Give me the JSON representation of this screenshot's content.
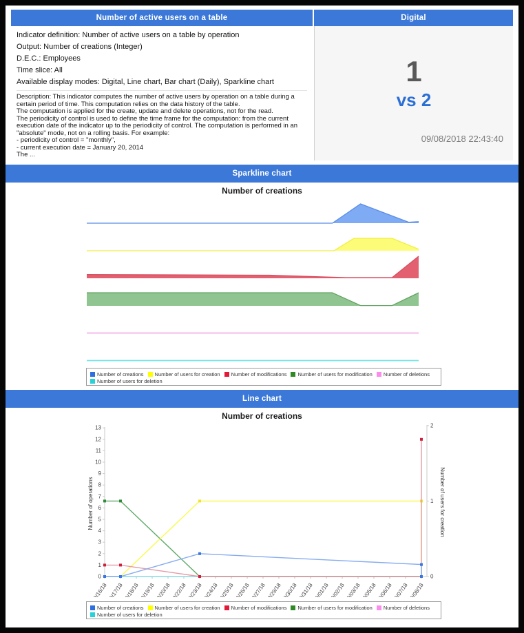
{
  "colors": {
    "header_bg": "#3B78D8",
    "header_text": "#ffffff",
    "digital_value": "#595959",
    "digital_vs": "#2B6FD4",
    "frame": "#060606",
    "digital_panel_bg": "#f6f6f6"
  },
  "top": {
    "left": {
      "title": "Number of active users on a table",
      "attributes": [
        "Indicator definition: Number of active users on a table by operation",
        "Output: Number of creations (Integer)",
        "D.E.C.: Employees",
        "Time slice: All",
        "Available display modes: Digital, Line chart, Bar chart (Daily), Sparkline chart"
      ],
      "description": "Description: This indicator computes the number of active users by operation on a table during a certain period of time. This computation relies on the data history of the table.\nThe computation is applied for the create, update and delete operations, not for the read.\nThe periodicity of control is used to define the time frame for the computation: from the current execution date of the indicator up to the periodicity of control. The computation is performed in an \"absolute\" mode, not on a rolling basis. For example:\n- periodicity of control = \"monthly\",\n- current execution date = January 20, 2014\nThe ..."
    },
    "right": {
      "title": "Digital",
      "value": "1",
      "comparison": "vs 2",
      "timestamp": "09/08/2018 22:43:40"
    }
  },
  "sparkline_section": {
    "title": "Sparkline chart",
    "chart_title": "Number of creations"
  },
  "line_section": {
    "title": "Line chart",
    "chart_title": "Number of creations"
  },
  "legend": {
    "items": [
      {
        "label": "Number of creations",
        "color": "#2E6FE0"
      },
      {
        "label": "Number of users for creation",
        "color": "#FFFF00"
      },
      {
        "label": "Number of modifications",
        "color": "#E31937"
      },
      {
        "label": "Number of users for modification",
        "color": "#2F8A25"
      },
      {
        "label": "Number of deletions",
        "color": "#FB8CEB"
      },
      {
        "label": "Number of users for deletion",
        "color": "#27D1D8"
      }
    ]
  },
  "chart_data": [
    {
      "type": "area",
      "variant": "sparklines",
      "title": "Number of creations",
      "series": [
        {
          "name": "Number of creations",
          "stroke": "#5A8CE8",
          "fill": "#7FABF4",
          "filled": true,
          "height": 28,
          "points": [
            [
              0,
              0
            ],
            [
              0.74,
              0
            ],
            [
              0.825,
              1
            ],
            [
              0.97,
              0.05
            ],
            [
              1,
              0.08
            ]
          ]
        },
        {
          "name": "Number of users for creation",
          "stroke": "#EFEF3E",
          "fill": "#FCFC78",
          "filled": true,
          "height": 18,
          "points": [
            [
              0,
              0
            ],
            [
              0.745,
              0
            ],
            [
              0.805,
              1
            ],
            [
              0.92,
              1
            ],
            [
              1,
              0.12
            ]
          ]
        },
        {
          "name": "Number of modifications",
          "stroke": "#D84F60",
          "fill": "#E2606F",
          "filled": true,
          "height": 32,
          "points": [
            [
              0,
              0.17
            ],
            [
              0.55,
              0.14
            ],
            [
              0.78,
              0.03
            ],
            [
              0.92,
              0.03
            ],
            [
              1,
              1
            ]
          ]
        },
        {
          "name": "Number of users for modification",
          "stroke": "#63A563",
          "fill": "#90C490",
          "filled": true,
          "height": 19,
          "points": [
            [
              0,
              1
            ],
            [
              0.74,
              1
            ],
            [
              0.825,
              0.02
            ],
            [
              0.92,
              0.02
            ],
            [
              1,
              1
            ]
          ]
        },
        {
          "name": "Number of deletions",
          "stroke": "#F2AEE9",
          "fill": "none",
          "filled": false,
          "height": 10,
          "points": [
            [
              0,
              0.05
            ],
            [
              1,
              0.05
            ]
          ]
        },
        {
          "name": "Number of users for deletion",
          "stroke": "#73E2E6",
          "fill": "none",
          "filled": false,
          "height": 10,
          "points": [
            [
              0,
              0.05
            ],
            [
              1,
              0.05
            ]
          ]
        }
      ]
    },
    {
      "type": "line",
      "title": "Number of creations",
      "ylabel": "Number of operations",
      "y2label": "Number of users for creation",
      "ylim": [
        0,
        13
      ],
      "y2lim": [
        0,
        2
      ],
      "y_ticks": [
        0,
        1,
        2,
        3,
        4,
        5,
        6,
        7,
        8,
        9,
        10,
        11,
        12,
        13
      ],
      "y2_ticks": [
        0,
        1,
        2
      ],
      "x_ticks": [
        "08/16/18",
        "08/17/18",
        "08/18/18",
        "08/19/18",
        "08/20/18",
        "08/22/18",
        "08/23/18",
        "08/24/18",
        "08/25/18",
        "08/26/18",
        "08/27/18",
        "08/29/18",
        "08/30/18",
        "08/31/18",
        "09/01/18",
        "09/02/18",
        "09/03/18",
        "09/05/18",
        "09/06/18",
        "09/07/18",
        "09/08/18"
      ],
      "series": [
        {
          "name": "Number of deletions",
          "axis": "left",
          "line_color": "#F4B8EE",
          "dot_color": "#F4B8EE",
          "points": [
            [
              0,
              0
            ],
            [
              20,
              0
            ]
          ],
          "dots": []
        },
        {
          "name": "Number of users for deletion",
          "axis": "left",
          "line_color": "#86E8EA",
          "dot_color": "#86E8EA",
          "points": [
            [
              0,
              0
            ],
            [
              20,
              0
            ]
          ],
          "dots": []
        },
        {
          "name": "Number of users for modification",
          "axis": "right",
          "line_color": "#5FA968",
          "dot_color": "#2F8A3A",
          "points": [
            [
              0,
              1
            ],
            [
              1,
              1
            ],
            [
              6,
              0
            ],
            [
              20,
              0
            ]
          ],
          "dots": [
            [
              0,
              1
            ],
            [
              1,
              1
            ]
          ]
        },
        {
          "name": "Number of users for creation",
          "axis": "right",
          "line_color": "#FAFA4E",
          "dot_color": "#F0E431",
          "points": [
            [
              1,
              0
            ],
            [
              6,
              1
            ],
            [
              20,
              1
            ],
            [
              20,
              0
            ]
          ],
          "dots": [
            [
              6,
              1
            ],
            [
              20,
              1
            ]
          ]
        },
        {
          "name": "Number of modifications",
          "axis": "left",
          "line_color": "#E59AA5",
          "dot_color": "#D01F3C",
          "points": [
            [
              0,
              1
            ],
            [
              1,
              1
            ],
            [
              6,
              0
            ],
            [
              20,
              0
            ],
            [
              20,
              12
            ]
          ],
          "dots": [
            [
              0,
              1
            ],
            [
              1,
              1
            ],
            [
              6,
              0
            ],
            [
              20,
              12
            ]
          ]
        },
        {
          "name": "Number of creations",
          "axis": "left",
          "line_color": "#85ACF0",
          "dot_color": "#3B76E0",
          "points": [
            [
              0,
              0
            ],
            [
              1,
              0
            ],
            [
              6,
              2
            ],
            [
              20,
              1.05
            ],
            [
              20,
              0
            ]
          ],
          "dots": [
            [
              0,
              0
            ],
            [
              1,
              0
            ],
            [
              6,
              2
            ],
            [
              20,
              1.05
            ],
            [
              20,
              0
            ]
          ]
        }
      ]
    }
  ]
}
